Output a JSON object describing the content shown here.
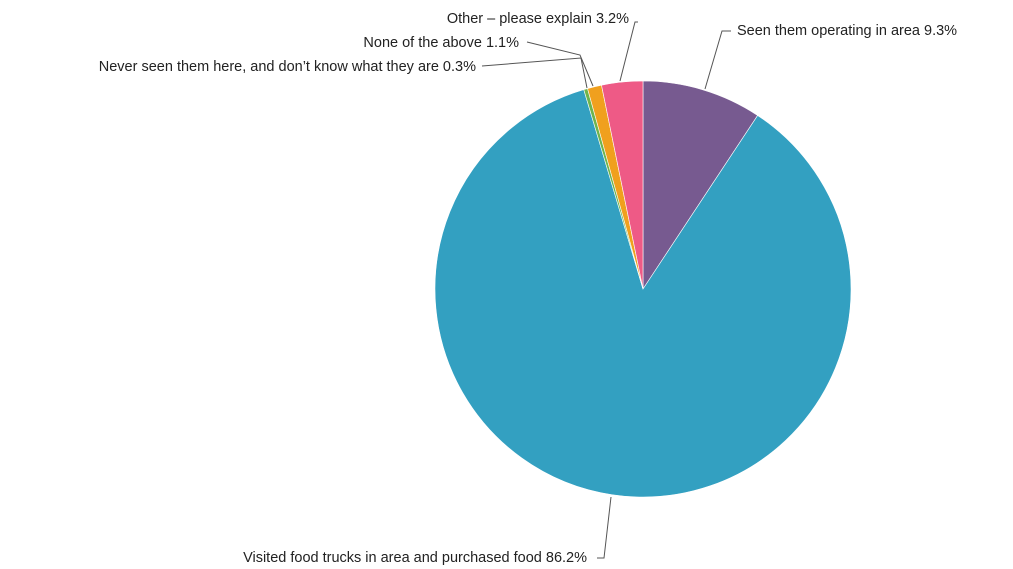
{
  "chart_data": {
    "type": "pie",
    "title": "",
    "slices": [
      {
        "label": "Seen them operating in area",
        "value": 9.3,
        "value_label": "9.3%",
        "color": "#775A90"
      },
      {
        "label": "Visited food trucks in area and purchased food",
        "value": 86.2,
        "value_label": "86.2%",
        "color": "#33A0C1"
      },
      {
        "label": "Never seen them here, and don’t know what they are",
        "value": 0.3,
        "value_label": "0.3%",
        "color": "#6FB44D"
      },
      {
        "label": "None of the above",
        "value": 1.1,
        "value_label": "1.1%",
        "color": "#F0A01E"
      },
      {
        "label": "Other – please explain",
        "value": 3.2,
        "value_label": "3.2%",
        "color": "#EE5A86"
      }
    ],
    "start_angle": "12 o'clock",
    "direction": "clockwise",
    "legend": "none"
  }
}
